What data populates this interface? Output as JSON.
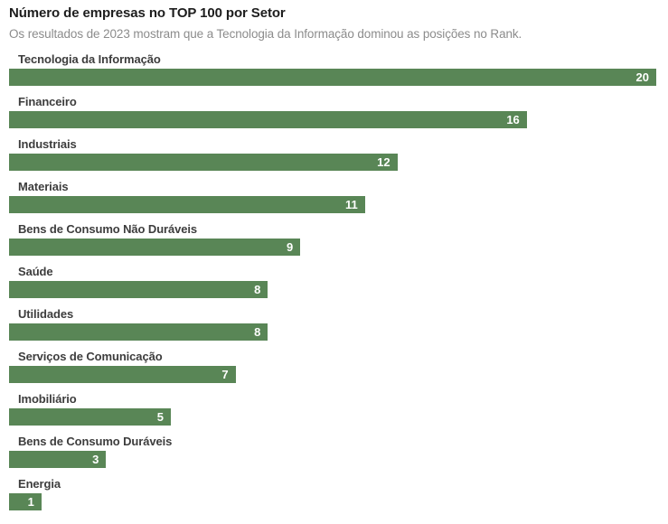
{
  "chart_data": {
    "type": "bar",
    "orientation": "horizontal",
    "title": "Número de empresas no TOP 100 por Setor",
    "subtitle": "Os resultados de 2023 mostram que a Tecnologia da Informação dominou as posições no Rank.",
    "categories": [
      "Tecnologia da Informação",
      "Financeiro",
      "Industriais",
      "Materiais",
      "Bens de Consumo Não Duráveis",
      "Saúde",
      "Utilidades",
      "Serviços de Comunicação",
      "Imobiliário",
      "Bens de Consumo Duráveis",
      "Energia"
    ],
    "values": [
      20,
      16,
      12,
      11,
      9,
      8,
      8,
      7,
      5,
      3,
      1
    ],
    "xlim": [
      0,
      20
    ],
    "grid": false,
    "legend": false,
    "data_labels": "inside-end",
    "colors": {
      "bar": "#598656",
      "value_label": "#ffffff",
      "category_label": "#3d3d3d",
      "title": "#1d1d1d",
      "subtitle": "#8c8c8c",
      "background": "#ffffff"
    }
  }
}
